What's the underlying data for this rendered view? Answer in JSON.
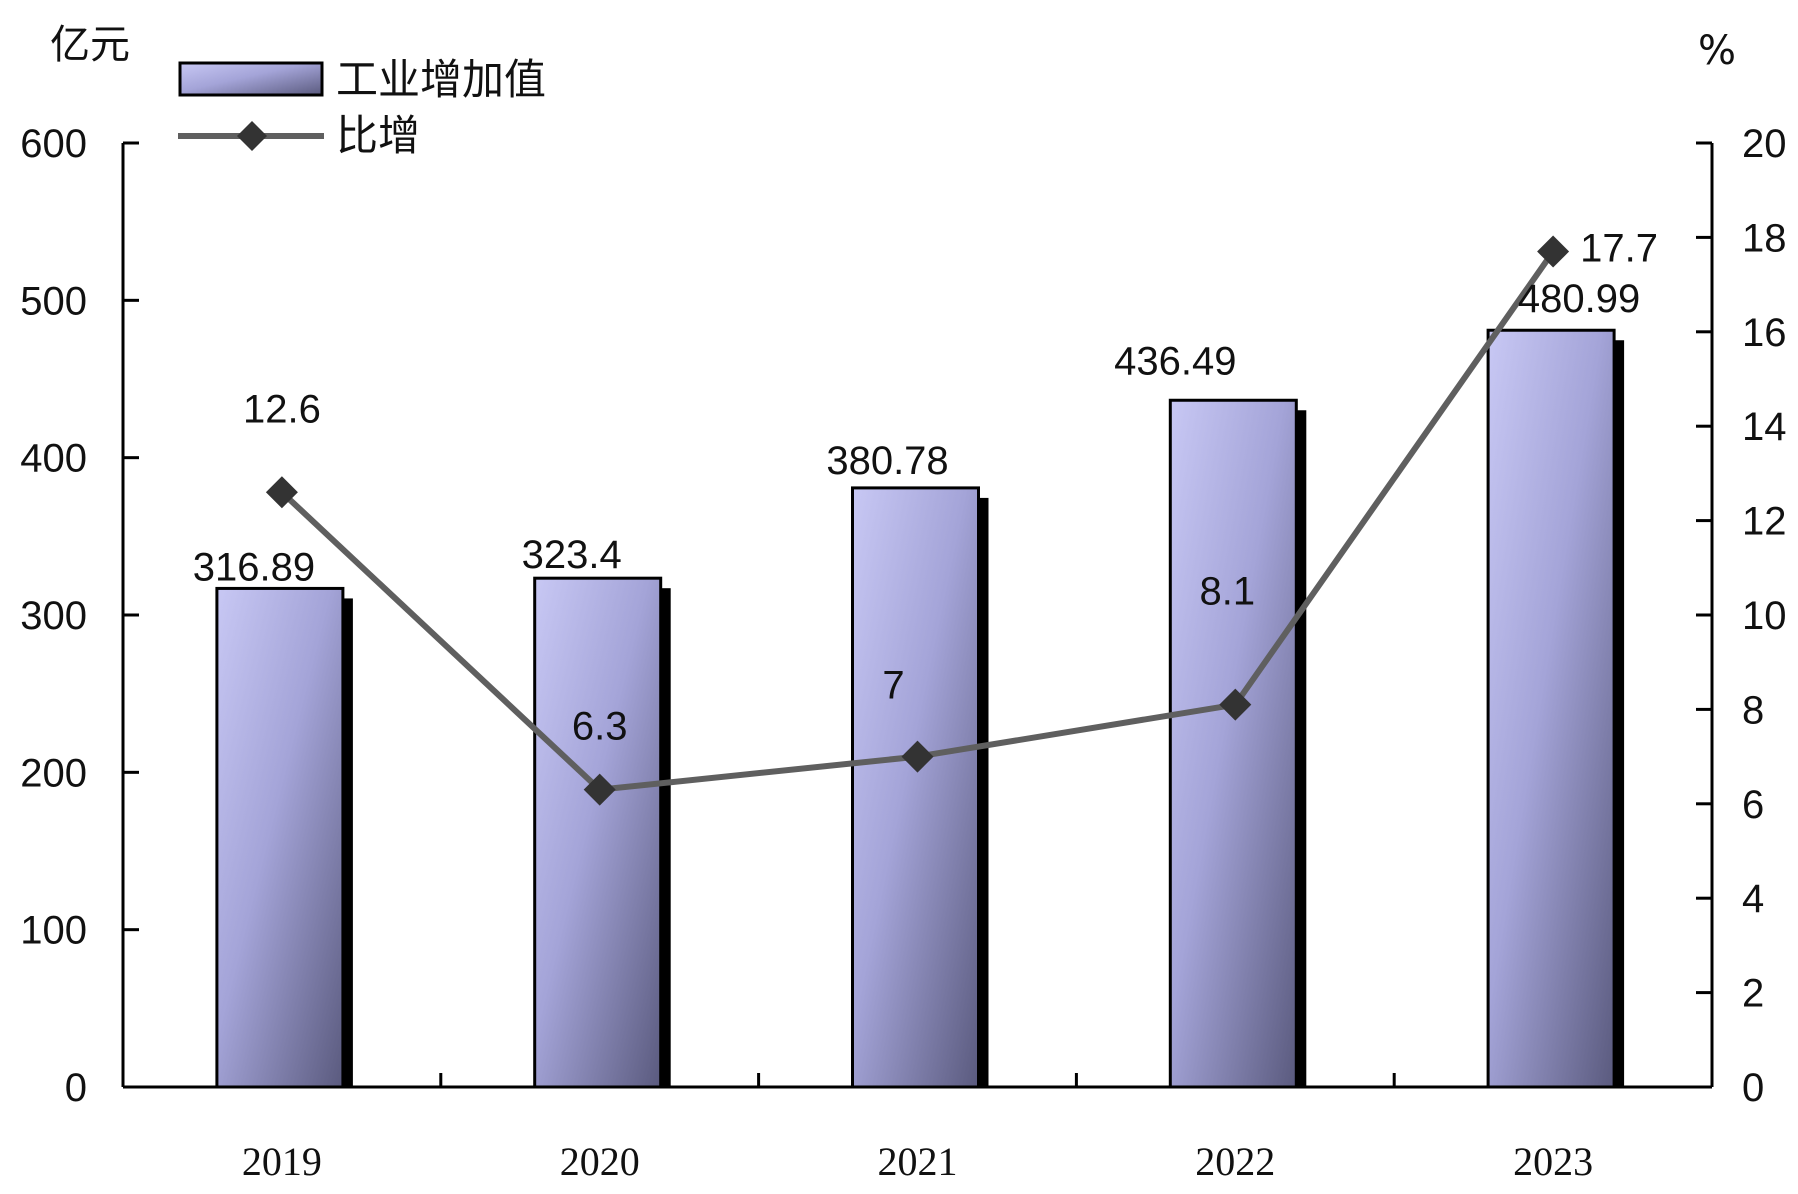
{
  "chart_data": {
    "type": "bar",
    "categories": [
      "2019",
      "2020",
      "2021",
      "2022",
      "2023"
    ],
    "series": [
      {
        "name": "工业增加值",
        "type": "bar",
        "axis": "left",
        "values": [
          316.89,
          323.4,
          380.78,
          436.49,
          480.99
        ],
        "labels": [
          "316.89",
          "323.4",
          "380.78",
          "436.49",
          "480.99"
        ]
      },
      {
        "name": "比增",
        "type": "line",
        "axis": "right",
        "values": [
          12.6,
          6.3,
          7,
          8.1,
          17.7
        ],
        "labels": [
          "12.6",
          "6.3",
          "7",
          "8.1",
          "17.7"
        ]
      }
    ],
    "y_left": {
      "unit": "亿元",
      "ylim": [
        0,
        600
      ],
      "ticks": [
        "0",
        "100",
        "200",
        "300",
        "400",
        "500",
        "600"
      ]
    },
    "y_right": {
      "unit": "%",
      "ylim": [
        0,
        20
      ],
      "ticks": [
        "0",
        "2",
        "4",
        "6",
        "8",
        "10",
        "12",
        "14",
        "16",
        "18",
        "20"
      ]
    },
    "grid": false,
    "legend_position": "top-left",
    "colors": {
      "bar_light": "#c8c8f4",
      "bar_mid": "#a4a4d8",
      "bar_dark": "#5a5a7e",
      "bar_shadow": "#000000",
      "line": "#5f5f5f",
      "marker": "#333333",
      "axis": "#000000"
    }
  }
}
